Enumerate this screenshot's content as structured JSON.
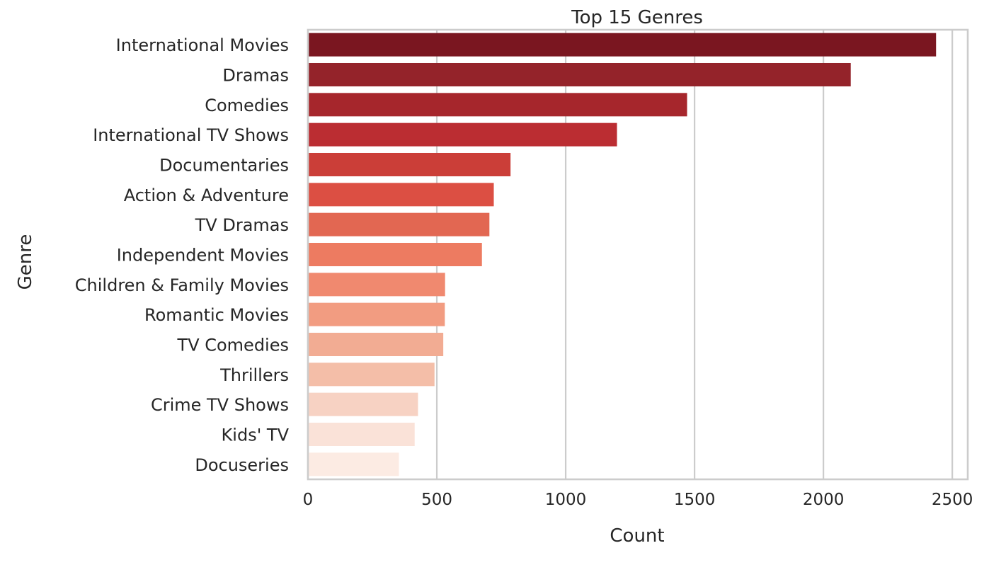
{
  "chart_data": {
    "type": "bar",
    "orientation": "horizontal",
    "title": "Top 15 Genres",
    "xlabel": "Count",
    "ylabel": "Genre",
    "xlim": [
      0,
      2560
    ],
    "xticks": [
      0,
      500,
      1000,
      1500,
      2000,
      2500
    ],
    "grid": "vertical",
    "legend": "none",
    "categories": [
      "International Movies",
      "Dramas",
      "Comedies",
      "International TV Shows",
      "Documentaries",
      "Action & Adventure",
      "TV Dramas",
      "Independent Movies",
      "Children & Family Movies",
      "Romantic Movies",
      "TV Comedies",
      "Thrillers",
      "Crime TV Shows",
      "Kids' TV",
      "Docuseries"
    ],
    "values": [
      2437,
      2106,
      1471,
      1199,
      786,
      721,
      704,
      675,
      532,
      531,
      525,
      491,
      427,
      414,
      353
    ],
    "colors": [
      "#7a1620",
      "#94232a",
      "#a6262c",
      "#bb2d32",
      "#cb3e38",
      "#dc4f43",
      "#e26752",
      "#ed7b61",
      "#f0896f",
      "#f29c81",
      "#f2ac93",
      "#f4bea8",
      "#f7d2c3",
      "#fae2d8",
      "#fcebe3"
    ]
  }
}
